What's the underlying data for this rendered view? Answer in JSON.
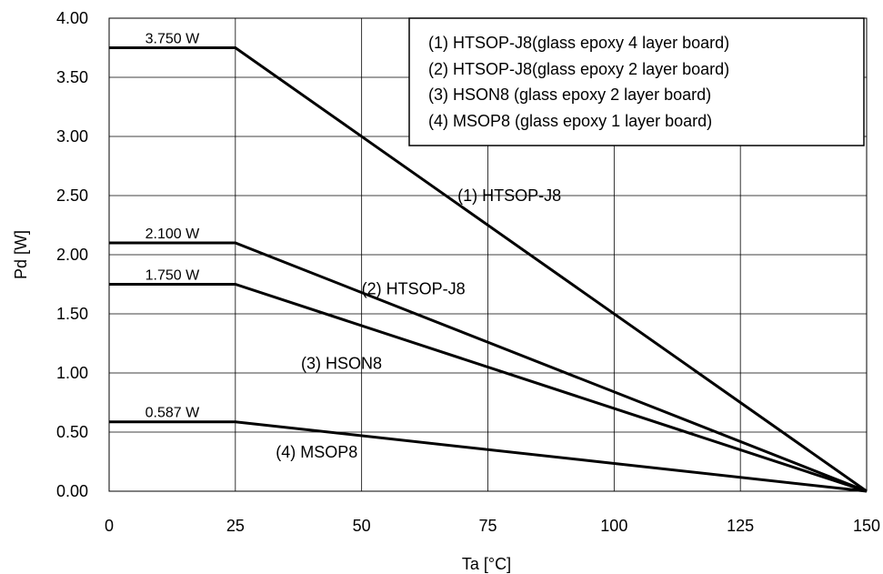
{
  "chart_data": {
    "type": "line",
    "title": "",
    "xlabel": "Ta  [°C]",
    "ylabel": "Pd  [W]",
    "xlim": [
      0,
      150
    ],
    "ylim": [
      0,
      4
    ],
    "xticks": [
      0,
      25,
      50,
      75,
      100,
      125,
      150
    ],
    "xtick_labels": [
      "0",
      "25",
      "50",
      "75",
      "100",
      "125",
      "150"
    ],
    "yticks": [
      0,
      0.5,
      1,
      1.5,
      2,
      2.5,
      3,
      3.5,
      4
    ],
    "ytick_labels": [
      "0.00",
      "0.50",
      "1.00",
      "1.50",
      "2.00",
      "2.50",
      "3.00",
      "3.50",
      "4.00"
    ],
    "grid": true,
    "legend_position": "top-right",
    "legend": [
      "(1)  HTSOP-J8(glass epoxy 4 layer board)",
      "(2)  HTSOP-J8(glass epoxy 2 layer board)",
      "(3)  HSON8 (glass epoxy 2 layer board)",
      "(4)  MSOP8 (glass epoxy 1 layer board)"
    ],
    "series": [
      {
        "name": "(1) HTSOP-J8",
        "x": [
          0,
          25,
          150
        ],
        "y": [
          3.75,
          3.75,
          0
        ],
        "value_label": "3.750 W",
        "curve_label": "(1) HTSOP-J8",
        "curve_label_at": [
          69,
          2.5
        ]
      },
      {
        "name": "(2) HTSOP-J8",
        "x": [
          0,
          25,
          150
        ],
        "y": [
          2.1,
          2.1,
          0
        ],
        "value_label": "2.100 W",
        "curve_label": "(2) HTSOP-J8",
        "curve_label_at": [
          50,
          1.71
        ]
      },
      {
        "name": "(3) HSON8",
        "x": [
          0,
          25,
          150
        ],
        "y": [
          1.75,
          1.75,
          0
        ],
        "value_label": "1.750 W",
        "curve_label": "(3) HSON8",
        "curve_label_at": [
          38,
          1.08
        ]
      },
      {
        "name": "(4) MSOP8",
        "x": [
          0,
          25,
          150
        ],
        "y": [
          0.587,
          0.587,
          0
        ],
        "value_label": "0.587 W",
        "curve_label": "(4) MSOP8",
        "curve_label_at": [
          33,
          0.33
        ]
      }
    ]
  }
}
